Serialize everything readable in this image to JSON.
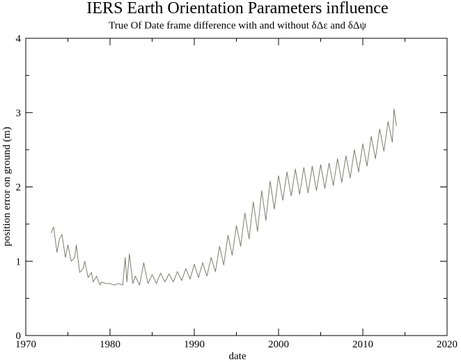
{
  "chart_data": {
    "type": "line",
    "title": "IERS Earth Orientation Parameters influence",
    "subtitle": "True Of Date frame difference with and without δΔε and δΔψ",
    "xlabel": "date",
    "ylabel": "position error on ground (m)",
    "xlim": [
      1970,
      2020
    ],
    "ylim": [
      0,
      4
    ],
    "x_ticks": [
      1970,
      1980,
      1990,
      2000,
      2010,
      2020
    ],
    "y_ticks": [
      0,
      1,
      2,
      3,
      4
    ],
    "grid": false,
    "line_color": "#7d7a6e",
    "series": [
      {
        "x": [
          1973.0,
          1973.3,
          1973.7,
          1974.0,
          1974.3,
          1974.7,
          1975.0,
          1975.4,
          1975.8,
          1976.0,
          1976.4,
          1976.8,
          1977.0,
          1977.4,
          1977.8,
          1978.0,
          1978.4,
          1978.8,
          1979.0,
          1979.5,
          1980.0,
          1980.5,
          1981.0,
          1981.5,
          1981.8,
          1982.0,
          1982.3,
          1982.7,
          1983.0,
          1983.5,
          1984.0,
          1984.5,
          1985.0,
          1985.5,
          1986.0,
          1986.5,
          1987.0,
          1987.5,
          1988.0,
          1988.5,
          1989.0,
          1989.5,
          1990.0,
          1990.5,
          1991.0,
          1991.5,
          1992.0,
          1992.5,
          1993.0,
          1993.5,
          1994.0,
          1994.5,
          1995.0,
          1995.5,
          1996.0,
          1996.5,
          1997.0,
          1997.5,
          1998.0,
          1998.5,
          1999.0,
          1999.5,
          2000.0,
          2000.5,
          2001.0,
          2001.5,
          2002.0,
          2002.5,
          2003.0,
          2003.5,
          2004.0,
          2004.5,
          2005.0,
          2005.5,
          2006.0,
          2006.5,
          2007.0,
          2007.5,
          2008.0,
          2008.5,
          2009.0,
          2009.5,
          2010.0,
          2010.5,
          2011.0,
          2011.5,
          2012.0,
          2012.5,
          2013.0,
          2013.5,
          2013.7,
          2014.0
        ],
        "y": [
          1.38,
          1.46,
          1.12,
          1.3,
          1.36,
          1.05,
          1.22,
          1.0,
          1.05,
          1.22,
          0.85,
          0.9,
          1.0,
          0.78,
          0.85,
          0.72,
          0.8,
          0.68,
          0.72,
          0.7,
          0.7,
          0.68,
          0.7,
          0.68,
          1.05,
          0.72,
          1.1,
          0.7,
          0.8,
          0.68,
          0.98,
          0.7,
          0.82,
          0.7,
          0.84,
          0.72,
          0.83,
          0.72,
          0.86,
          0.74,
          0.9,
          0.76,
          0.96,
          0.78,
          0.98,
          0.8,
          1.05,
          0.86,
          1.2,
          0.95,
          1.35,
          1.08,
          1.48,
          1.2,
          1.65,
          1.3,
          1.8,
          1.4,
          1.95,
          1.55,
          2.08,
          1.7,
          2.15,
          1.82,
          2.2,
          1.88,
          2.24,
          1.9,
          2.26,
          1.92,
          2.28,
          1.95,
          2.3,
          1.98,
          2.32,
          2.02,
          2.38,
          2.06,
          2.42,
          2.12,
          2.5,
          2.2,
          2.58,
          2.28,
          2.68,
          2.38,
          2.78,
          2.48,
          2.88,
          2.6,
          3.05,
          2.82
        ]
      }
    ]
  }
}
